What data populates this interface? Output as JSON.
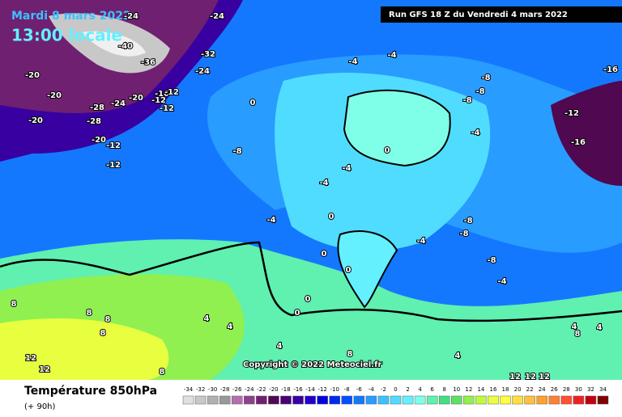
{
  "header": {
    "forecast_date": "Mardi 8 mars 2022",
    "local_time": "13:00 locale",
    "run": "Run GFS 18 Z du Vendredi 4 mars 2022"
  },
  "legend": {
    "title": "Température 850hPa",
    "lead": "(+ 90h)"
  },
  "copyright": "Copyright © 2022 Meteociel.fr",
  "colorbar": {
    "ticks": [
      -34,
      -32,
      -30,
      -28,
      -26,
      -24,
      -22,
      -20,
      -18,
      -16,
      -14,
      -12,
      -10,
      -8,
      -6,
      -4,
      -2,
      0,
      2,
      4,
      6,
      8,
      10,
      12,
      14,
      16,
      18,
      20,
      22,
      24,
      26,
      28,
      30,
      32,
      34
    ],
    "colors": [
      "#e0e0e0",
      "#c8c8c8",
      "#b0b0b0",
      "#989898",
      "#b070b0",
      "#904090",
      "#702070",
      "#500850",
      "#4a0078",
      "#3800a0",
      "#2000c8",
      "#0000e0",
      "#0028f0",
      "#0050ff",
      "#1478ff",
      "#289cff",
      "#3cc0ff",
      "#50dcff",
      "#64f0ff",
      "#80ffe8",
      "#60f0b0",
      "#40e080",
      "#60e060",
      "#90f050",
      "#c0f840",
      "#e8ff40",
      "#ffff40",
      "#ffe040",
      "#ffc040",
      "#ffa030",
      "#ff8030",
      "#ff5030",
      "#f02020",
      "#c00010",
      "#800000"
    ]
  },
  "contour_labels": [
    -24,
    -24,
    -32,
    -36,
    -40,
    -24,
    -20,
    -20,
    -28,
    -24,
    -20,
    -16,
    -12,
    -12,
    -12,
    -20,
    -28,
    -20,
    -12,
    -12,
    -8,
    -4,
    -4,
    -8,
    -8,
    -8,
    -12,
    -16,
    -16,
    0,
    -4,
    -4,
    -4,
    -4,
    0,
    0,
    -8,
    -8,
    -8,
    -4,
    -4,
    0,
    0,
    0,
    4,
    4,
    8,
    8,
    8,
    8,
    4,
    8,
    4,
    12,
    12,
    8,
    12,
    12,
    12,
    4,
    4,
    8,
    0
  ]
}
